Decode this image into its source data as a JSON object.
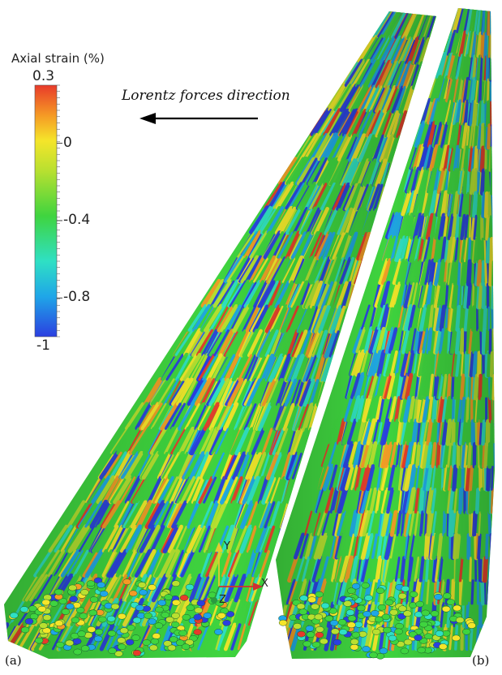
{
  "colorbar": {
    "title": "Axial strain (%)",
    "max_label": "0.3",
    "min_label": "-1",
    "range": [
      -1,
      0.3
    ],
    "ticks": [
      {
        "value": 0,
        "label": "0"
      },
      {
        "value": -0.4,
        "label": "-0.4"
      },
      {
        "value": -0.8,
        "label": "-0.8"
      }
    ],
    "colormap": [
      "#2b3fe0",
      "#1fa6e8",
      "#2fe0c4",
      "#3fd43f",
      "#b8e030",
      "#f5e52a",
      "#f59a25",
      "#e83a2a"
    ]
  },
  "annotation": {
    "text": "Lorentz forces direction"
  },
  "axes_triad": {
    "x": "X",
    "y": "Y",
    "z": "Z"
  },
  "panels": {
    "a": "(a)",
    "b": "(b)"
  }
}
